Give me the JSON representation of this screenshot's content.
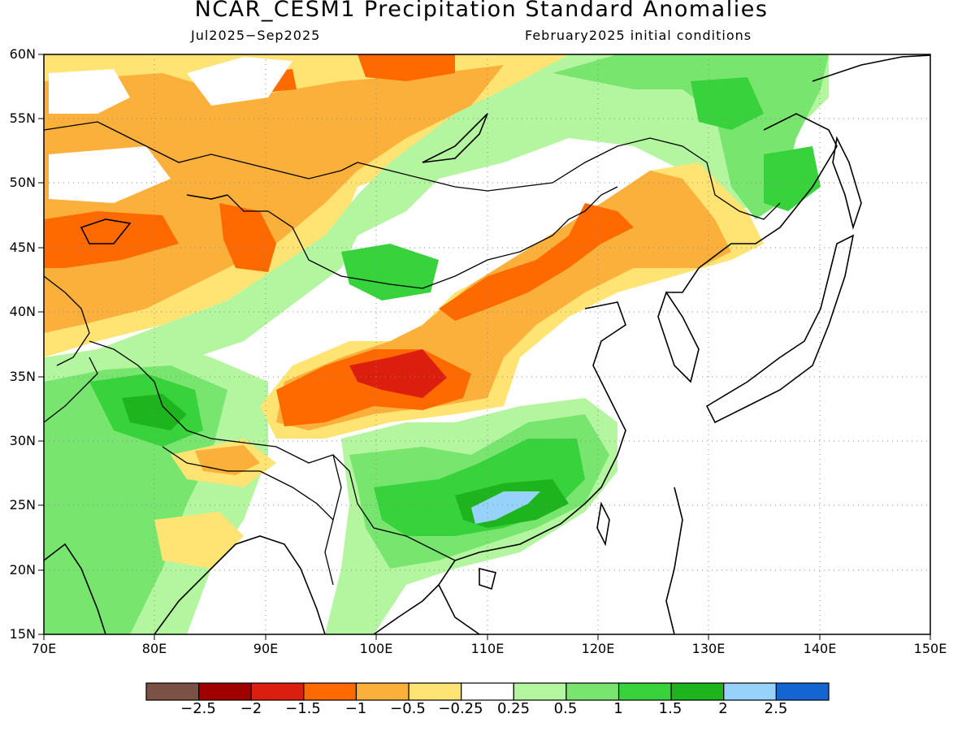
{
  "header": {
    "title": "NCAR_CESM1 Precipitation Standard Anomalies",
    "period": "Jul2025-Sep2025",
    "initial_conditions": "February2025 initial conditions"
  },
  "map": {
    "lon_range": [
      70,
      150
    ],
    "lat_range": [
      15,
      60
    ],
    "lat_labels": [
      "60N",
      "55N",
      "50N",
      "45N",
      "40N",
      "35N",
      "30N",
      "25N",
      "20N",
      "15N"
    ],
    "lon_labels": [
      "70E",
      "80E",
      "90E",
      "100E",
      "110E",
      "120E",
      "130E",
      "140E",
      "150E"
    ],
    "grid": "dotted",
    "coastline_color": "#000000"
  },
  "colorbar": {
    "colors": [
      "#7b5145",
      "#a00000",
      "#dc1e0f",
      "#ff6a00",
      "#fbb03b",
      "#ffe474",
      "#ffffff",
      "#b4f5a0",
      "#78e66e",
      "#37d23c",
      "#1eb41e",
      "#96d2fa",
      "#1464d2"
    ],
    "tick_labels": [
      "-2.5",
      "-2",
      "-1.5",
      "-1",
      "-0.5",
      "-0.25",
      "0.25",
      "0.5",
      "1",
      "1.5",
      "2",
      "2.5"
    ]
  }
}
